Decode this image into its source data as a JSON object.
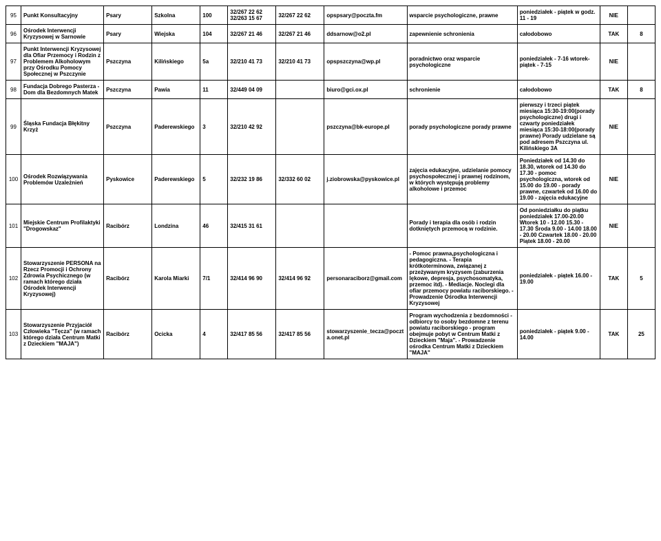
{
  "rows": [
    {
      "idx": "95",
      "name": "Punkt Konsultacyjny",
      "city": "Psary",
      "street": "Szkolna",
      "num": "100",
      "phone1": "32/267 22 62 32/263 15 67",
      "phone2": "32/267 22 62",
      "email": "opspsary@poczta.fm",
      "services": "wsparcie psychologiczne, prawne",
      "hours": "poniedziałek - piątek w godz. 11 - 19",
      "yn": "NIE",
      "last": ""
    },
    {
      "idx": "96",
      "name": "Ośrodek Interwencji Kryzysowej w Sarnowie",
      "city": "Psary",
      "street": "Wiejska",
      "num": "104",
      "phone1": "32/267 21 46",
      "phone2": "32/267 21 46",
      "email": "ddsarnow@o2.pl",
      "services": "zapewnienie schronienia",
      "hours": "całodobowo",
      "yn": "TAK",
      "last": "8"
    },
    {
      "idx": "97",
      "name": "Punkt Interwencji Kryzysowej dla Ofiar Przemocy i Rodzin z Problemem Alkoholowym przy Ośrodku Pomocy Społecznej w Pszczynie",
      "city": "Pszczyna",
      "street": "Kilińskiego",
      "num": "5a",
      "phone1": "32/210 41 73",
      "phone2": "32/210 41 73",
      "email": "opspszczyna@wp.pl",
      "services": "poradnictwo oraz wsparcie psychologiczne",
      "hours": "poniedziałek - 7-16 wtorek-piątek - 7-15",
      "yn": "NIE",
      "last": ""
    },
    {
      "idx": "98",
      "name": "Fundacja Dobrego Pasterza - Dom dla Bezdomnych Matek",
      "city": "Pszczyna",
      "street": "Pawia",
      "num": "11",
      "phone1": "32/449 04 09",
      "phone2": "",
      "email": "biuro@gci.ox.pl",
      "services": "schronienie",
      "hours": "całodobowo",
      "yn": "TAK",
      "last": "8"
    },
    {
      "idx": "99",
      "name": "Śląska Fundacja Błękitny Krzyż",
      "city": "Pszczyna",
      "street": "Paderewskiego",
      "num": "3",
      "phone1": "32/210 42 92",
      "phone2": "",
      "email": "pszczyna@bk-europe.pl",
      "services": "porady psychologiczne porady prawne",
      "hours": "pierwszy i trzeci piątek miesiąca 15:30-19:00(porady psychologiczne) drugi i czwarty poniedziałek miesiąca 15:30-18:00(porady prawne) Porady udzielane są pod adresem Pszczyna ul. Kilińskiego 3A",
      "yn": "NIE",
      "last": ""
    },
    {
      "idx": "100",
      "name": "Ośrodek Rozwiązywania Problemów Uzależnień",
      "city": "Pyskowice",
      "street": "Paderewskiego",
      "num": "5",
      "phone1": "32/232 19 86",
      "phone2": "32/332 60 02",
      "email": "j.ziobrowska@pyskowice.pl",
      "services": "zajęcia edukacyjne, udzielanie pomocy psychospołecznej i prawnej rodzinom, w których występują problemy alkoholowe i przemoc",
      "hours": "Poniedziałek od 14.30 do 18.30, wtorek od 14.30 do 17.30 - pomoc psychologiczna, wtorek od 15.00 do 19.00 - porady prawne, czwartek od 16.00 do 19.00 - zajęcia edukacyjne",
      "yn": "NIE",
      "last": ""
    },
    {
      "idx": "101",
      "name": "Miejskie Centrum Profilaktyki \"Drogowskaz\"",
      "city": "Racibórz",
      "street": "Londzina",
      "num": "46",
      "phone1": "32/415 31 61",
      "phone2": "",
      "email": "",
      "services": "Porady i terapia dla osób i rodzin dotkniętych przemocą w rodzinie.",
      "hours": "Od poniedziałku do piątku poniedziałek 17.00-20.00 Wtorek 10 - 12.00 15.30 - 17.30 Środa 9.00 - 14.00 18.00 - 20.00 Czwartek 18.00 - 20.00 Piątek 18.00 - 20.00",
      "yn": "NIE",
      "last": ""
    },
    {
      "idx": "102",
      "name": "Stowarzyszenie PERSONA na Rzecz Promocji i Ochrony Zdrowia Psychicznego (w ramach którego działa Ośrodek Interwencji Kryzysowej)",
      "city": "Racibórz",
      "street": "Karola Miarki",
      "num": "7/1",
      "phone1": "32/414 96 90",
      "phone2": "32/414 96 92",
      "email": "personaraciborz@gmail.com",
      "services": "- Pomoc prawna,psychologiczna i pedagogiczna. - Terapia krótkoterminowa, związanej z przeżywanym kryzysem (zaburzenia lękowe, depresja, psychosomatyka, przemoc itd). - Mediacje. Noclegi dla ofiar przemocy powiatu raciborskiego. - Prowadzenie Ośrodka Interwencji Kryzysowej",
      "hours": "poniedziałek - piątek 16.00 - 19.00",
      "yn": "TAK",
      "last": "5"
    },
    {
      "idx": "103",
      "name": "Stowarzyszenie Przyjaciół Człowieka \"Tęcza\" (w ramach którego działa Centrum Matki z Dzieckiem \"MAJA\")",
      "city": "Racibórz",
      "street": "Ocicka",
      "num": "4",
      "phone1": "32/417 85 56",
      "phone2": "32/417 85 56",
      "email": "stowarzyszenie_tecza@poczta.onet.pl",
      "services": "Program wychodzenia z bezdomności - odbiorcy to osoby bezdomne z terenu powiatu raciborskiego - program obejmuje pobyt w Centrum Matki z Dzieckiem \"Maja\". - Prowadzenie ośrodka Centrum Matki z Dzieckiem \"MAJA\"",
      "hours": "poniedziałek - piątek 9.00 - 14.00",
      "yn": "TAK",
      "last": "25"
    }
  ]
}
